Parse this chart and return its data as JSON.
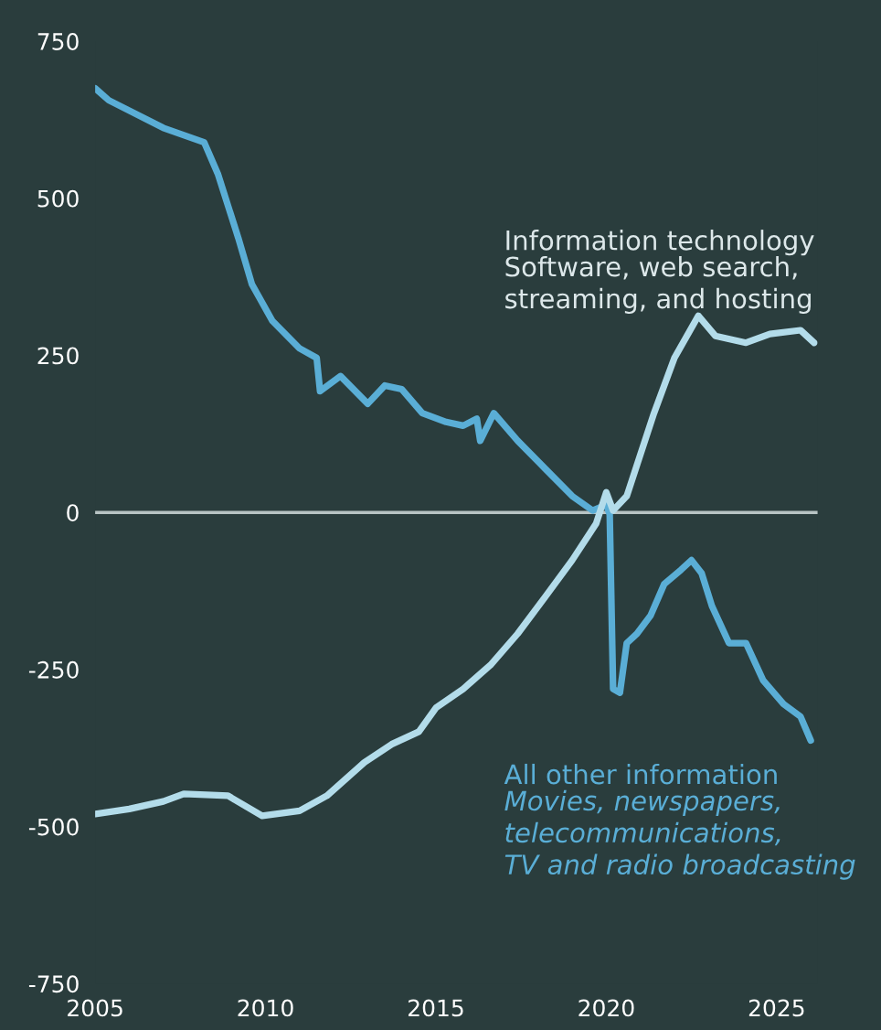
{
  "chart_data": {
    "type": "line",
    "x": [
      2005.0,
      2005.4,
      2007.0,
      2008.2,
      2008.6,
      2009.2,
      2009.6,
      2010.2,
      2011.0,
      2011.5,
      2011.6,
      2012.2,
      2013.0,
      2013.5,
      2014.0,
      2014.6,
      2015.3,
      2015.8,
      2016.2,
      2016.3,
      2016.7,
      2017.4,
      2018.2,
      2019.0,
      2019.6,
      2020.0,
      2020.1,
      2020.2,
      2020.4,
      2020.6,
      2020.9,
      2021.3,
      2021.7,
      2022.2,
      2022.5,
      2022.8,
      2023.1,
      2023.6,
      2024.1,
      2024.6,
      2025.2,
      2025.7,
      2026.0
    ],
    "series": [
      {
        "name": "All other information",
        "color": "#5aaed6",
        "values": [
          675,
          656,
          612,
          589,
          539,
          437,
          363,
          305,
          261,
          246,
          193,
          217,
          173,
          202,
          196,
          158,
          144,
          138,
          149,
          114,
          158,
          114,
          70,
          26,
          3,
          12,
          -3,
          -281,
          -287,
          -208,
          -193,
          -164,
          -114,
          -91,
          -76,
          -97,
          -149,
          -208,
          -208,
          -267,
          -305,
          -325,
          -363
        ]
      },
      {
        "name": "Information technology",
        "color": "#b3dcea",
        "x": [
          2005.0,
          2006.0,
          2007.0,
          2007.6,
          2008.9,
          2009.9,
          2011.0,
          2011.8,
          2012.9,
          2013.7,
          2014.5,
          2015.0,
          2015.8,
          2016.6,
          2017.4,
          2018.2,
          2019.0,
          2019.7,
          2020.0,
          2020.2,
          2020.6,
          2021.4,
          2022.0,
          2022.7,
          2023.2,
          2024.1,
          2024.8,
          2025.7,
          2026.1
        ],
        "values": [
          -480,
          -472,
          -460,
          -448,
          -451,
          -483,
          -475,
          -451,
          -398,
          -369,
          -349,
          -311,
          -281,
          -243,
          -193,
          -135,
          -76,
          -18,
          32,
          3,
          26,
          158,
          246,
          313,
          281,
          270,
          284,
          290,
          270
        ]
      }
    ],
    "annotations": [
      "Movies, newspapers,\ntelecommunications,\nTV and radio broadcasting",
      "Software, web search,\nstreaming, and hosting"
    ],
    "xlim": [
      2005,
      2026.2
    ],
    "xticks": [
      2005,
      2010,
      2015,
      2020,
      2025
    ],
    "ylim": [
      -750,
      750
    ],
    "yticks": [
      -750,
      -500,
      -250,
      0,
      250,
      500,
      750
    ],
    "ref_lines": [
      {
        "axis": "y",
        "value": 0,
        "color": "#b8c4c4"
      }
    ],
    "grid": false,
    "legend": false
  }
}
